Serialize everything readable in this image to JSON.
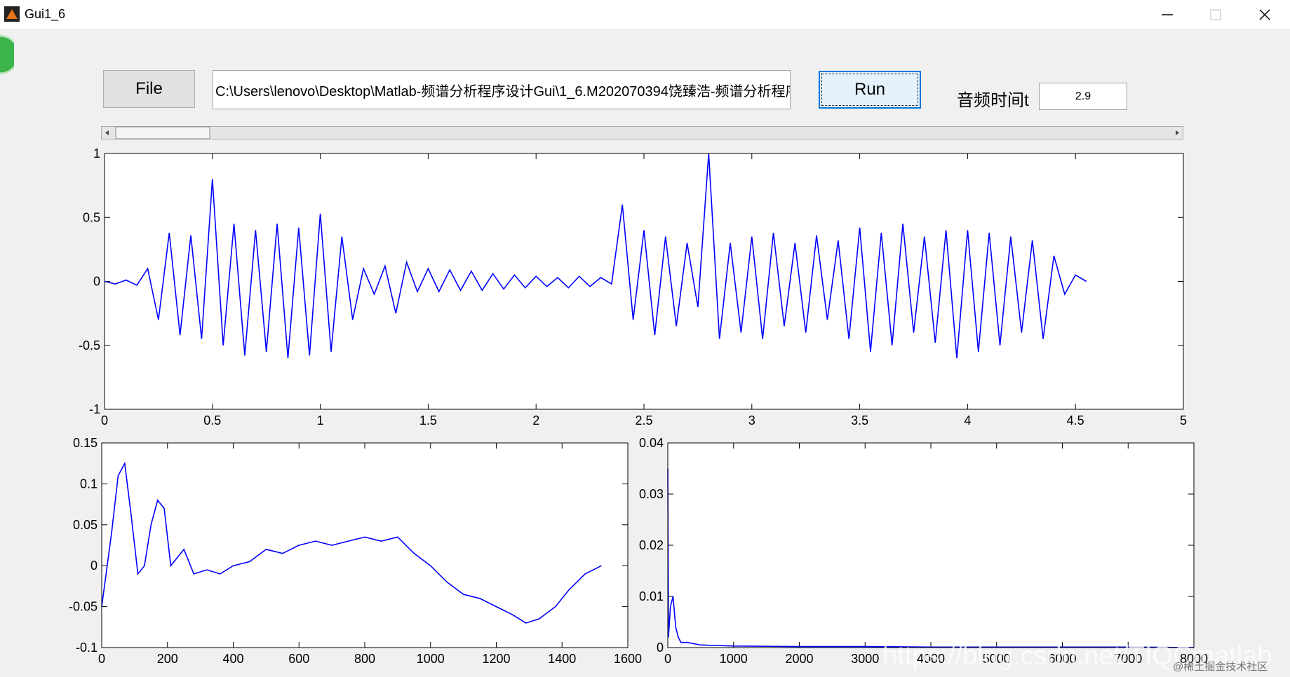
{
  "window": {
    "title": "Gui1_6"
  },
  "controls": {
    "file_button": "File",
    "path": "C:\\Users\\lenovo\\Desktop\\Matlab-频谱分析程序设计Gui\\1_6.M202070394饶臻浩-频谱分析程序设",
    "run_button": "Run",
    "time_label": "音频时间t",
    "time_value": "2.9"
  },
  "chart_data": [
    {
      "type": "line",
      "x": [
        0,
        0.05,
        0.1,
        0.15,
        0.2,
        0.25,
        0.3,
        0.35,
        0.4,
        0.45,
        0.5,
        0.55,
        0.6,
        0.65,
        0.7,
        0.75,
        0.8,
        0.85,
        0.9,
        0.95,
        1.0,
        1.05,
        1.1,
        1.15,
        1.2,
        1.25,
        1.3,
        1.35,
        1.4,
        1.45,
        1.5,
        1.55,
        1.6,
        1.65,
        1.7,
        1.75,
        1.8,
        1.85,
        1.9,
        1.95,
        2.0,
        2.05,
        2.1,
        2.15,
        2.2,
        2.25,
        2.3,
        2.35,
        2.4,
        2.45,
        2.5,
        2.55,
        2.6,
        2.65,
        2.7,
        2.75,
        2.8,
        2.85,
        2.9,
        2.95,
        3.0,
        3.05,
        3.1,
        3.15,
        3.2,
        3.25,
        3.3,
        3.35,
        3.4,
        3.45,
        3.5,
        3.55,
        3.6,
        3.65,
        3.7,
        3.75,
        3.8,
        3.85,
        3.9,
        3.95,
        4.0,
        4.05,
        4.1,
        4.15,
        4.2,
        4.25,
        4.3,
        4.35,
        4.4,
        4.45,
        4.5,
        4.55
      ],
      "series": [
        {
          "color": "#0000ff",
          "values": [
            0,
            -0.02,
            0.01,
            -0.03,
            0.1,
            -0.3,
            0.38,
            -0.42,
            0.36,
            -0.45,
            0.8,
            -0.5,
            0.45,
            -0.58,
            0.4,
            -0.55,
            0.45,
            -0.6,
            0.42,
            -0.58,
            0.53,
            -0.55,
            0.35,
            -0.3,
            0.1,
            -0.1,
            0.12,
            -0.25,
            0.15,
            -0.08,
            0.1,
            -0.08,
            0.09,
            -0.07,
            0.08,
            -0.07,
            0.06,
            -0.06,
            0.05,
            -0.05,
            0.04,
            -0.04,
            0.03,
            -0.05,
            0.04,
            -0.04,
            0.03,
            -0.02,
            0.6,
            -0.3,
            0.4,
            -0.42,
            0.35,
            -0.35,
            0.3,
            -0.2,
            1.0,
            -0.45,
            0.3,
            -0.4,
            0.35,
            -0.45,
            0.38,
            -0.35,
            0.3,
            -0.4,
            0.36,
            -0.3,
            0.32,
            -0.45,
            0.42,
            -0.55,
            0.38,
            -0.5,
            0.45,
            -0.4,
            0.35,
            -0.48,
            0.4,
            -0.6,
            0.4,
            -0.55,
            0.38,
            -0.5,
            0.35,
            -0.4,
            0.32,
            -0.45,
            0.2,
            -0.1,
            0.05,
            0.0
          ]
        }
      ],
      "xlim": [
        0,
        5
      ],
      "ylim": [
        -1,
        1
      ],
      "xticks": [
        0,
        0.5,
        1,
        1.5,
        2,
        2.5,
        3,
        3.5,
        4,
        4.5,
        5
      ],
      "yticks": [
        -1,
        -0.5,
        0,
        0.5,
        1
      ]
    },
    {
      "type": "line",
      "x": [
        0,
        30,
        50,
        70,
        90,
        110,
        130,
        150,
        170,
        190,
        210,
        250,
        280,
        320,
        360,
        400,
        450,
        500,
        550,
        600,
        650,
        700,
        750,
        800,
        850,
        900,
        950,
        1000,
        1050,
        1100,
        1150,
        1200,
        1250,
        1290,
        1330,
        1380,
        1420,
        1470,
        1520
      ],
      "series": [
        {
          "color": "#0000ff",
          "values": [
            -0.05,
            0.04,
            0.11,
            0.125,
            0.06,
            -0.01,
            0.0,
            0.05,
            0.08,
            0.07,
            0.0,
            0.02,
            -0.01,
            -0.005,
            -0.01,
            0.0,
            0.005,
            0.02,
            0.015,
            0.025,
            0.03,
            0.025,
            0.03,
            0.035,
            0.03,
            0.035,
            0.015,
            0.0,
            -0.02,
            -0.035,
            -0.04,
            -0.05,
            -0.06,
            -0.07,
            -0.065,
            -0.05,
            -0.03,
            -0.01,
            0.0
          ]
        }
      ],
      "xlim": [
        0,
        1600
      ],
      "ylim": [
        -0.1,
        0.15
      ],
      "xticks": [
        0,
        200,
        400,
        600,
        800,
        1000,
        1200,
        1400,
        1600
      ],
      "yticks": [
        -0.1,
        -0.05,
        0,
        0.05,
        0.1,
        0.15
      ]
    },
    {
      "type": "line",
      "x": [
        0,
        10,
        40,
        80,
        120,
        160,
        200,
        300,
        500,
        1000,
        2000,
        3000,
        4000,
        5000,
        6000,
        7000,
        8000
      ],
      "series": [
        {
          "color": "#0000ff",
          "values": [
            0.035,
            0.002,
            0.008,
            0.01,
            0.004,
            0.002,
            0.001,
            0.001,
            0.0005,
            0.0003,
            0.0002,
            0.0002,
            0.0001,
            0.0001,
            0.0001,
            0.0001,
            0.0
          ]
        }
      ],
      "xlim": [
        0,
        8000
      ],
      "ylim": [
        0,
        0.04
      ],
      "xticks": [
        0,
        1000,
        2000,
        3000,
        4000,
        5000,
        6000,
        7000,
        8000
      ],
      "yticks": [
        0,
        0.01,
        0.02,
        0.03,
        0.04
      ]
    }
  ],
  "watermark": {
    "url": "https://blog.csdn.net/TIQCmatlab",
    "site": "@稀土掘金技术社区"
  }
}
